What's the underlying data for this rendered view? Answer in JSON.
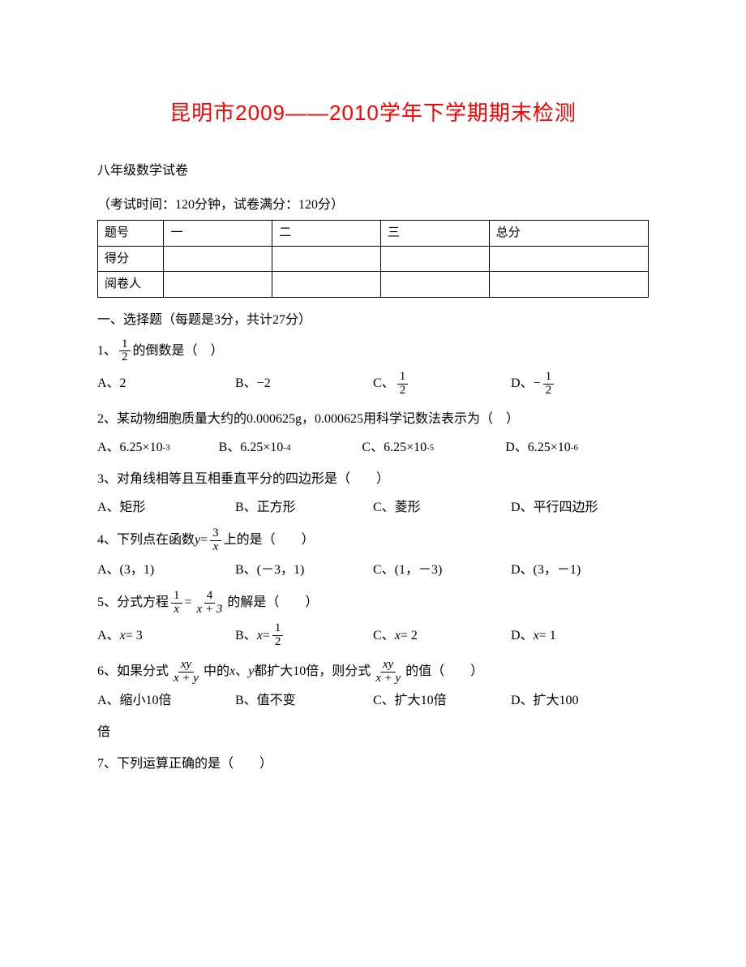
{
  "colors": {
    "title": "#ff0000",
    "text": "#000000",
    "border": "#000000",
    "background": "#ffffff"
  },
  "title": "昆明市2009——2010学年下学期期末检测",
  "subtitle": "八年级数学试卷",
  "timing": "（考试时间：120分钟，试卷满分：120分）",
  "scoreTable": {
    "headers": [
      "题号",
      "一",
      "二",
      "三",
      "总分"
    ],
    "rows": [
      "得分",
      "阅卷人"
    ]
  },
  "sectionA": "一、选择题（每题是3分，共计27分）",
  "q1": {
    "prefix": "1、",
    "frac_num": "1",
    "frac_den": "2",
    "suffix": "的倒数是（　）"
  },
  "q1opts": {
    "A": "A、2",
    "B": "B、−2",
    "C_pre": "C、",
    "C_num": "1",
    "C_den": "2",
    "D_pre": "D、−",
    "D_num": "1",
    "D_den": "2"
  },
  "q2": "2、某动物细胞质量大约的0.000625g，0.000625用科学记数法表示为（　）",
  "q2opts": {
    "A_pre": "A、6.25×10",
    "A_sup": "-3",
    "B_pre": "B、6.25×10",
    "B_sup": "-4",
    "C_pre": "C、6.25×10",
    "C_sup": "-5",
    "D_pre": "D、6.25×10",
    "D_sup": "-6"
  },
  "q3": "3、对角线相等且互相垂直平分的四边形是（　　）",
  "q3opts": {
    "A": "A、矩形",
    "B": "B、正方形",
    "C": "C、菱形",
    "D": "D、平行四边形"
  },
  "q4": {
    "prefix": "4、下列点在函数",
    "y": "y",
    "eq": " = ",
    "num": "3",
    "den": "x",
    "suffix": "上的是（　　）"
  },
  "q4opts": {
    "A": "A、(3，1)",
    "B": "B、(－3，1)",
    "C": "C、(1，－3)",
    "D": "D、(3，－1)"
  },
  "q5": {
    "prefix": "5、分式方程",
    "l_num": "1",
    "l_den": "x",
    "eq": " = ",
    "r_num": "4",
    "r_den": "x + 3",
    "suffix": "的解是（　　）"
  },
  "q5opts": {
    "A_pre": "A、",
    "A_var": "x",
    "A_val": " = 3",
    "B_pre": "B、",
    "B_var": "x",
    "B_eq": " = ",
    "B_num": "1",
    "B_den": "2",
    "C_pre": "C、",
    "C_var": "x",
    "C_val": " = 2",
    "D_pre": "D、",
    "D_var": "x",
    "D_val": " = 1"
  },
  "q6": {
    "prefix": "6、如果分式",
    "f1_num": "xy",
    "f1_den": "x + y",
    "mid1": "中的",
    "x": "x",
    "dot": "、",
    "y": "y",
    "mid2": "都扩大10倍，则分式",
    "f2_num": "xy",
    "f2_den": "x + y",
    "suffix": "的值（　　）"
  },
  "q6opts": {
    "A": "A、缩小10倍",
    "B": "B、值不变",
    "C": "C、扩大10倍",
    "D": "D、扩大100"
  },
  "q6cont": "倍",
  "q7": "7、下列运算正确的是（　　）"
}
